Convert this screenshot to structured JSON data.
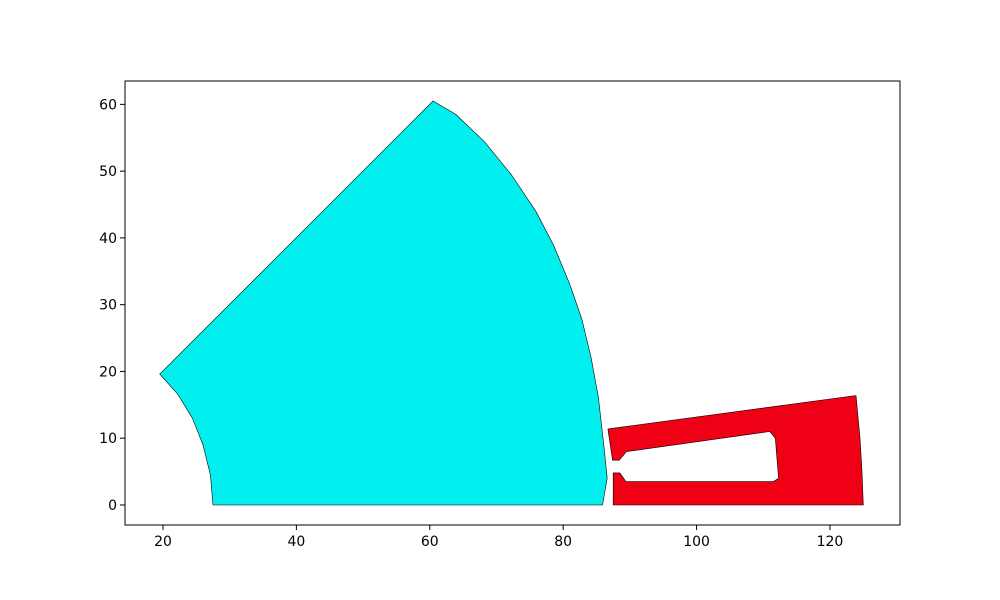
{
  "chart_data": {
    "type": "polygon-plot",
    "title": "",
    "xlabel": "",
    "ylabel": "",
    "xlim": [
      14.3,
      130.5
    ],
    "ylim": [
      -3.0,
      63.5
    ],
    "x_ticks": [
      20,
      40,
      60,
      80,
      100,
      120
    ],
    "y_ticks": [
      0,
      10,
      20,
      30,
      40,
      50,
      60
    ],
    "grid": false,
    "legend": "none",
    "shapes": [
      {
        "kind": "sector",
        "fill": "#00f0f0",
        "stroke": "#000000",
        "points": [
          [
            27.5,
            0.0
          ],
          [
            85.9,
            0.0
          ],
          [
            86.6,
            4.0
          ],
          [
            86.2,
            8.0
          ],
          [
            85.3,
            16.0
          ],
          [
            84.2,
            22.0
          ],
          [
            82.8,
            27.8
          ],
          [
            81.0,
            33.0
          ],
          [
            78.6,
            38.8
          ],
          [
            75.9,
            44.0
          ],
          [
            72.2,
            49.5
          ],
          [
            68.2,
            54.4
          ],
          [
            63.9,
            58.5
          ],
          [
            60.5,
            60.5
          ],
          [
            19.5,
            19.6
          ],
          [
            22.2,
            16.6
          ],
          [
            24.4,
            13.0
          ],
          [
            26.0,
            9.0
          ],
          [
            27.1,
            4.5
          ]
        ]
      },
      {
        "kind": "slotted-tooth",
        "fill": "#f00014",
        "stroke": "#000000",
        "points": [
          [
            87.5,
            0.0
          ],
          [
            125.0,
            0.0
          ],
          [
            124.8,
            5.0
          ],
          [
            124.5,
            10.0
          ],
          [
            123.9,
            16.4
          ],
          [
            86.7,
            11.4
          ],
          [
            87.4,
            6.7
          ],
          [
            88.4,
            6.7
          ],
          [
            89.5,
            8.0
          ],
          [
            111.0,
            11.0
          ],
          [
            111.8,
            10.0
          ],
          [
            112.3,
            4.0
          ],
          [
            111.5,
            3.5
          ],
          [
            89.4,
            3.5
          ],
          [
            88.5,
            4.8
          ],
          [
            87.5,
            4.8
          ]
        ]
      }
    ]
  }
}
